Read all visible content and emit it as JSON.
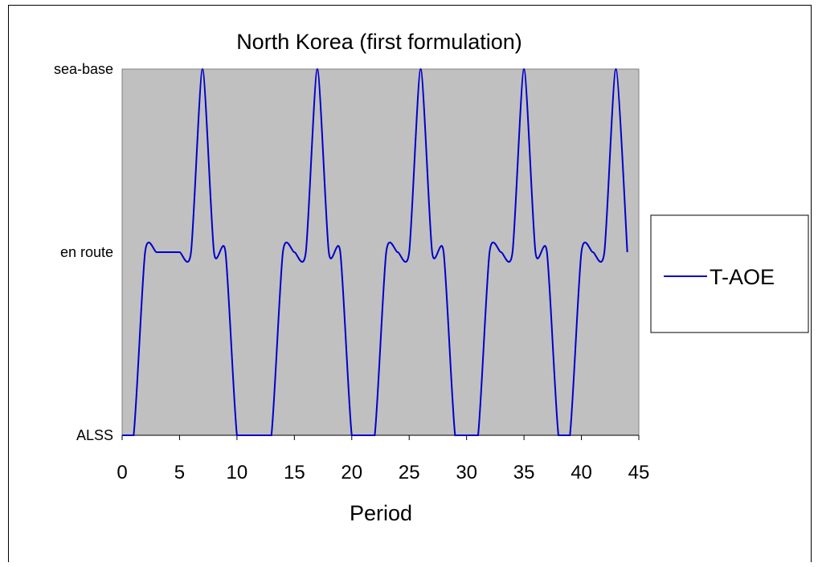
{
  "chart_data": {
    "type": "line",
    "title": "North Korea (first formulation)",
    "xlabel": "Period",
    "ylabel": "",
    "xlim": [
      0,
      45
    ],
    "x_ticks": [
      0,
      5,
      10,
      15,
      20,
      25,
      30,
      35,
      40,
      45
    ],
    "y_categories": [
      "ALSS",
      "en route",
      "sea-base"
    ],
    "ylim": [
      0,
      2
    ],
    "grid": false,
    "legend_position": "right",
    "plot_background": "#c0c0c0",
    "series": [
      {
        "name": "T-AOE",
        "color": "#0000cc",
        "x": [
          0,
          1,
          2,
          3,
          4,
          5,
          6,
          7,
          8,
          9,
          10,
          11,
          12,
          13,
          14,
          15,
          16,
          17,
          18,
          19,
          20,
          21,
          22,
          23,
          24,
          25,
          26,
          27,
          28,
          29,
          30,
          31,
          32,
          33,
          34,
          35,
          36,
          37,
          38,
          39,
          40,
          41,
          42,
          43,
          44
        ],
        "y": [
          0,
          0,
          1,
          1,
          1,
          1,
          1,
          2,
          1,
          1,
          0,
          0,
          0,
          0,
          1,
          1,
          1,
          2,
          1,
          1,
          0,
          0,
          0,
          1,
          1,
          1,
          2,
          1,
          1,
          0,
          0,
          0,
          1,
          1,
          1,
          2,
          1,
          1,
          0,
          0,
          1,
          1,
          1,
          2,
          1
        ]
      }
    ]
  }
}
